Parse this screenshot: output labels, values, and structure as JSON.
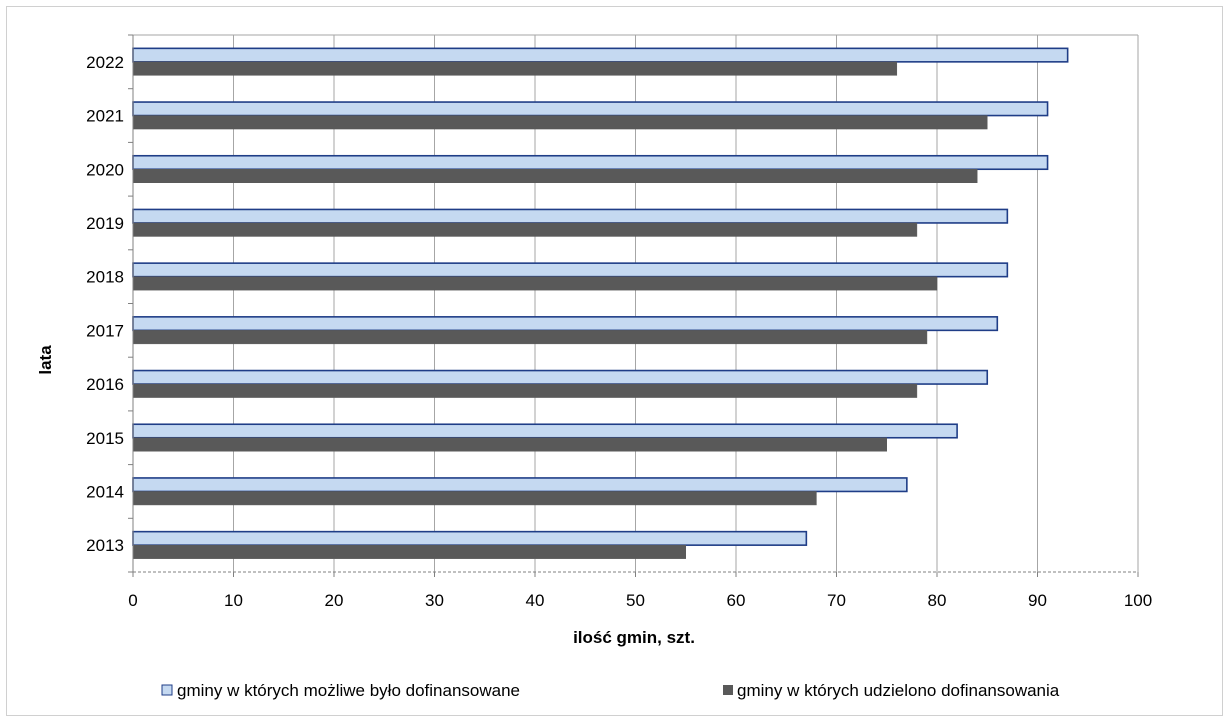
{
  "chart_data": {
    "type": "bar",
    "orientation": "horizontal",
    "title": "",
    "xlabel": "ilość gmin, szt.",
    "ylabel": "lata",
    "xlim": [
      0,
      100
    ],
    "xticks": [
      0,
      10,
      20,
      30,
      40,
      50,
      60,
      70,
      80,
      90,
      100
    ],
    "grid": "vertical",
    "legend_position": "bottom",
    "categories": [
      "2013",
      "2014",
      "2015",
      "2016",
      "2017",
      "2018",
      "2019",
      "2020",
      "2021",
      "2022"
    ],
    "series": [
      {
        "name": "gminy w których możliwe było dofinansowane",
        "color": "#c5d9f1",
        "border": "#1f3d87",
        "values": [
          67,
          77,
          82,
          85,
          86,
          87,
          87,
          91,
          91,
          93
        ]
      },
      {
        "name": "gminy w których udzielono dofinansowania",
        "color": "#595959",
        "border": "#595959",
        "values": [
          55,
          68,
          75,
          78,
          79,
          80,
          78,
          84,
          85,
          76
        ]
      }
    ]
  }
}
